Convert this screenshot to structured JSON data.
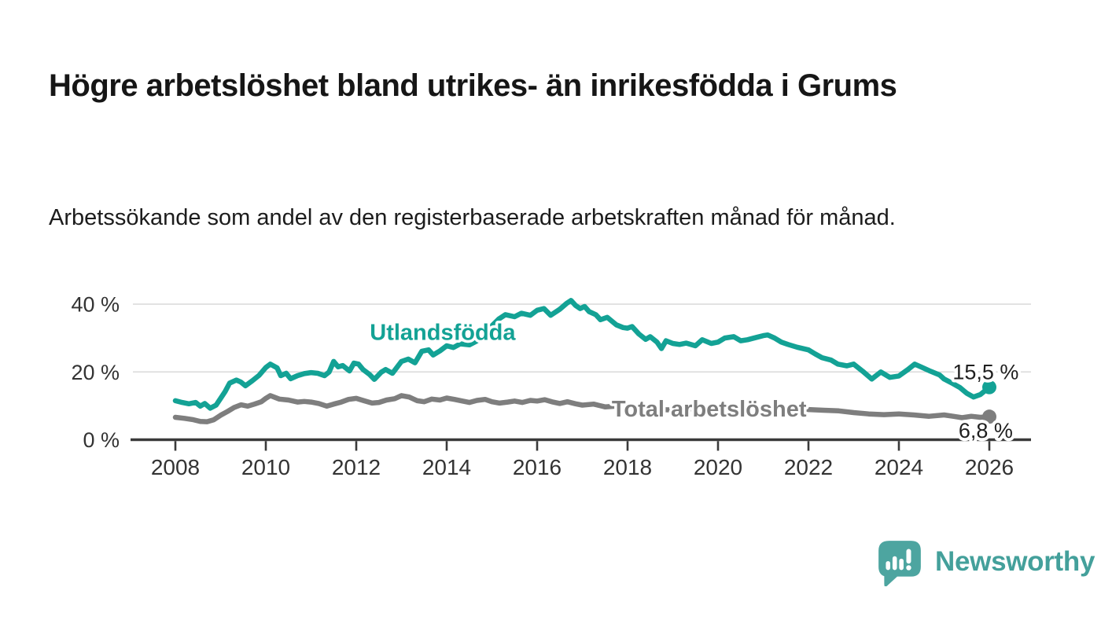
{
  "header": {
    "title": "Högre arbetslöshet bland utrikes- än inrikesfödda i Grums",
    "subtitle": "Arbetssökande som andel av den registerbaserade arbetskraften månad för månad."
  },
  "branding": {
    "wordmark": "Newsworthy",
    "icon": "bar-chart-speech-bubble-icon",
    "color": "#44A09B"
  },
  "colors": {
    "series_foreign_born": "#13A295",
    "series_total": "#7E7E7E",
    "axis": "#3A3A3A",
    "grid": "#D9D9D9",
    "tick_text": "#333333",
    "value_text": "#1F1F1F",
    "background": "#FFFFFF"
  },
  "chart_data": {
    "type": "line",
    "title": "Högre arbetslöshet bland utrikes- än inrikesfödda i Grums",
    "xlabel": "",
    "ylabel": "",
    "unit": "%",
    "grid": "horizontal-only",
    "legend_position": "inline-labels-on-lines",
    "x_axis": {
      "tick_years": [
        2008,
        2010,
        2012,
        2014,
        2016,
        2018,
        2020,
        2022,
        2024,
        2026
      ],
      "tick_labels": [
        "2008",
        "2010",
        "2012",
        "2014",
        "2016",
        "2018",
        "2020",
        "2022",
        "2024",
        "2026"
      ],
      "range": [
        2007.05,
        2026.93
      ]
    },
    "y_axis": {
      "tick_values": [
        0,
        20,
        40
      ],
      "tick_labels": [
        "0 %",
        "20 %",
        "40 %"
      ],
      "range": [
        0,
        44
      ]
    },
    "series": [
      {
        "name": "Utlandsfödda",
        "color": "#13A295",
        "end_value": 15.5,
        "end_label": "15,5 %",
        "label_anchor": {
          "year": 2012.3,
          "value": 29.5,
          "anchor": "start"
        },
        "end_label_anchor": {
          "year": 2026.65,
          "value": 17.8,
          "anchor": "end"
        },
        "points": [
          [
            2008.0,
            11.5
          ],
          [
            2008.15,
            11.0
          ],
          [
            2008.3,
            10.6
          ],
          [
            2008.45,
            11.0
          ],
          [
            2008.55,
            9.9
          ],
          [
            2008.65,
            10.7
          ],
          [
            2008.77,
            9.3
          ],
          [
            2008.9,
            10.2
          ],
          [
            2009.0,
            12.2
          ],
          [
            2009.1,
            14.2
          ],
          [
            2009.2,
            16.7
          ],
          [
            2009.35,
            17.6
          ],
          [
            2009.45,
            17.0
          ],
          [
            2009.55,
            15.9
          ],
          [
            2009.7,
            17.4
          ],
          [
            2009.85,
            19.0
          ],
          [
            2010.0,
            21.3
          ],
          [
            2010.1,
            22.3
          ],
          [
            2010.25,
            21.2
          ],
          [
            2010.33,
            18.9
          ],
          [
            2010.45,
            19.6
          ],
          [
            2010.55,
            18.0
          ],
          [
            2010.7,
            18.9
          ],
          [
            2010.85,
            19.5
          ],
          [
            2011.0,
            19.8
          ],
          [
            2011.15,
            19.6
          ],
          [
            2011.3,
            18.9
          ],
          [
            2011.4,
            20.0
          ],
          [
            2011.5,
            23.1
          ],
          [
            2011.6,
            21.5
          ],
          [
            2011.7,
            21.9
          ],
          [
            2011.85,
            20.3
          ],
          [
            2011.95,
            22.6
          ],
          [
            2012.05,
            22.3
          ],
          [
            2012.15,
            20.7
          ],
          [
            2012.3,
            19.2
          ],
          [
            2012.4,
            17.8
          ],
          [
            2012.55,
            19.9
          ],
          [
            2012.65,
            20.7
          ],
          [
            2012.8,
            19.6
          ],
          [
            2013.0,
            23.1
          ],
          [
            2013.15,
            23.8
          ],
          [
            2013.3,
            22.7
          ],
          [
            2013.45,
            26.1
          ],
          [
            2013.6,
            26.5
          ],
          [
            2013.7,
            25.0
          ],
          [
            2013.85,
            26.2
          ],
          [
            2014.0,
            27.7
          ],
          [
            2014.15,
            27.2
          ],
          [
            2014.3,
            28.3
          ],
          [
            2014.5,
            28.0
          ],
          [
            2014.65,
            29.0
          ],
          [
            2014.85,
            31.0
          ],
          [
            2015.0,
            33.6
          ],
          [
            2015.15,
            35.6
          ],
          [
            2015.3,
            36.9
          ],
          [
            2015.5,
            36.3
          ],
          [
            2015.65,
            37.3
          ],
          [
            2015.85,
            36.7
          ],
          [
            2016.0,
            38.2
          ],
          [
            2016.15,
            38.7
          ],
          [
            2016.3,
            36.7
          ],
          [
            2016.5,
            38.5
          ],
          [
            2016.65,
            40.2
          ],
          [
            2016.75,
            41.1
          ],
          [
            2016.85,
            39.6
          ],
          [
            2016.95,
            38.7
          ],
          [
            2017.05,
            39.3
          ],
          [
            2017.15,
            37.8
          ],
          [
            2017.3,
            36.9
          ],
          [
            2017.4,
            35.4
          ],
          [
            2017.55,
            36.1
          ],
          [
            2017.75,
            33.9
          ],
          [
            2017.9,
            33.1
          ],
          [
            2018.0,
            32.9
          ],
          [
            2018.1,
            33.4
          ],
          [
            2018.25,
            31.2
          ],
          [
            2018.4,
            29.6
          ],
          [
            2018.5,
            30.4
          ],
          [
            2018.65,
            28.8
          ],
          [
            2018.75,
            26.9
          ],
          [
            2018.85,
            29.2
          ],
          [
            2019.0,
            28.4
          ],
          [
            2019.15,
            28.1
          ],
          [
            2019.3,
            28.5
          ],
          [
            2019.5,
            27.7
          ],
          [
            2019.65,
            29.5
          ],
          [
            2019.85,
            28.4
          ],
          [
            2020.0,
            28.8
          ],
          [
            2020.15,
            30.0
          ],
          [
            2020.35,
            30.4
          ],
          [
            2020.5,
            29.2
          ],
          [
            2020.65,
            29.5
          ],
          [
            2020.85,
            30.2
          ],
          [
            2021.0,
            30.7
          ],
          [
            2021.1,
            30.9
          ],
          [
            2021.25,
            30.0
          ],
          [
            2021.4,
            28.8
          ],
          [
            2021.55,
            28.1
          ],
          [
            2021.75,
            27.3
          ],
          [
            2022.0,
            26.5
          ],
          [
            2022.15,
            25.3
          ],
          [
            2022.3,
            24.2
          ],
          [
            2022.5,
            23.5
          ],
          [
            2022.65,
            22.3
          ],
          [
            2022.85,
            21.8
          ],
          [
            2023.0,
            22.3
          ],
          [
            2023.2,
            20.2
          ],
          [
            2023.4,
            17.9
          ],
          [
            2023.6,
            20.0
          ],
          [
            2023.8,
            18.4
          ],
          [
            2024.0,
            18.8
          ],
          [
            2024.2,
            20.7
          ],
          [
            2024.35,
            22.3
          ],
          [
            2024.5,
            21.4
          ],
          [
            2024.7,
            20.2
          ],
          [
            2024.9,
            19.1
          ],
          [
            2025.0,
            17.9
          ],
          [
            2025.2,
            16.5
          ],
          [
            2025.35,
            15.4
          ],
          [
            2025.5,
            13.7
          ],
          [
            2025.65,
            12.6
          ],
          [
            2025.8,
            13.3
          ],
          [
            2026.0,
            15.5
          ]
        ]
      },
      {
        "name": "Total arbetslöshet",
        "color": "#7E7E7E",
        "end_value": 6.8,
        "end_label": "6,8 %",
        "label_anchor": {
          "year": 2017.65,
          "value": 6.8,
          "anchor": "start"
        },
        "end_label_anchor": {
          "year": 2026.52,
          "value": 0.55,
          "anchor": "end"
        },
        "points": [
          [
            2008.0,
            6.6
          ],
          [
            2008.2,
            6.3
          ],
          [
            2008.4,
            5.9
          ],
          [
            2008.55,
            5.4
          ],
          [
            2008.7,
            5.3
          ],
          [
            2008.85,
            5.9
          ],
          [
            2009.0,
            7.2
          ],
          [
            2009.15,
            8.3
          ],
          [
            2009.3,
            9.5
          ],
          [
            2009.45,
            10.3
          ],
          [
            2009.6,
            9.9
          ],
          [
            2009.75,
            10.5
          ],
          [
            2009.9,
            11.2
          ],
          [
            2010.0,
            12.2
          ],
          [
            2010.1,
            13.0
          ],
          [
            2010.3,
            12.0
          ],
          [
            2010.5,
            11.7
          ],
          [
            2010.7,
            11.1
          ],
          [
            2010.85,
            11.3
          ],
          [
            2011.0,
            11.1
          ],
          [
            2011.17,
            10.7
          ],
          [
            2011.35,
            9.9
          ],
          [
            2011.5,
            10.5
          ],
          [
            2011.67,
            11.1
          ],
          [
            2011.83,
            11.9
          ],
          [
            2012.0,
            12.2
          ],
          [
            2012.17,
            11.5
          ],
          [
            2012.35,
            10.8
          ],
          [
            2012.5,
            11.0
          ],
          [
            2012.67,
            11.7
          ],
          [
            2012.85,
            12.1
          ],
          [
            2013.0,
            13.0
          ],
          [
            2013.17,
            12.6
          ],
          [
            2013.35,
            11.5
          ],
          [
            2013.5,
            11.2
          ],
          [
            2013.67,
            12.0
          ],
          [
            2013.85,
            11.7
          ],
          [
            2014.0,
            12.3
          ],
          [
            2014.17,
            11.9
          ],
          [
            2014.35,
            11.4
          ],
          [
            2014.5,
            11.0
          ],
          [
            2014.67,
            11.6
          ],
          [
            2014.85,
            11.9
          ],
          [
            2015.0,
            11.2
          ],
          [
            2015.17,
            10.8
          ],
          [
            2015.35,
            11.1
          ],
          [
            2015.5,
            11.4
          ],
          [
            2015.67,
            11.0
          ],
          [
            2015.85,
            11.6
          ],
          [
            2016.0,
            11.4
          ],
          [
            2016.17,
            11.8
          ],
          [
            2016.35,
            11.1
          ],
          [
            2016.5,
            10.7
          ],
          [
            2016.67,
            11.2
          ],
          [
            2016.85,
            10.6
          ],
          [
            2017.0,
            10.2
          ],
          [
            2017.25,
            10.5
          ],
          [
            2017.5,
            9.7
          ],
          [
            2017.75,
            9.9
          ],
          [
            2018.0,
            9.3
          ],
          [
            2018.33,
            9.0
          ],
          [
            2018.67,
            8.9
          ],
          [
            2019.0,
            8.8
          ],
          [
            2019.33,
            9.1
          ],
          [
            2019.67,
            9.0
          ],
          [
            2020.0,
            9.2
          ],
          [
            2020.33,
            9.6
          ],
          [
            2020.67,
            9.4
          ],
          [
            2021.0,
            9.5
          ],
          [
            2021.33,
            9.2
          ],
          [
            2021.67,
            9.0
          ],
          [
            2022.0,
            8.9
          ],
          [
            2022.33,
            8.7
          ],
          [
            2022.67,
            8.5
          ],
          [
            2023.0,
            8.0
          ],
          [
            2023.33,
            7.6
          ],
          [
            2023.67,
            7.4
          ],
          [
            2024.0,
            7.6
          ],
          [
            2024.33,
            7.3
          ],
          [
            2024.67,
            6.9
          ],
          [
            2025.0,
            7.3
          ],
          [
            2025.2,
            6.9
          ],
          [
            2025.4,
            6.5
          ],
          [
            2025.6,
            6.9
          ],
          [
            2025.8,
            6.6
          ],
          [
            2026.0,
            6.8
          ]
        ]
      }
    ]
  }
}
